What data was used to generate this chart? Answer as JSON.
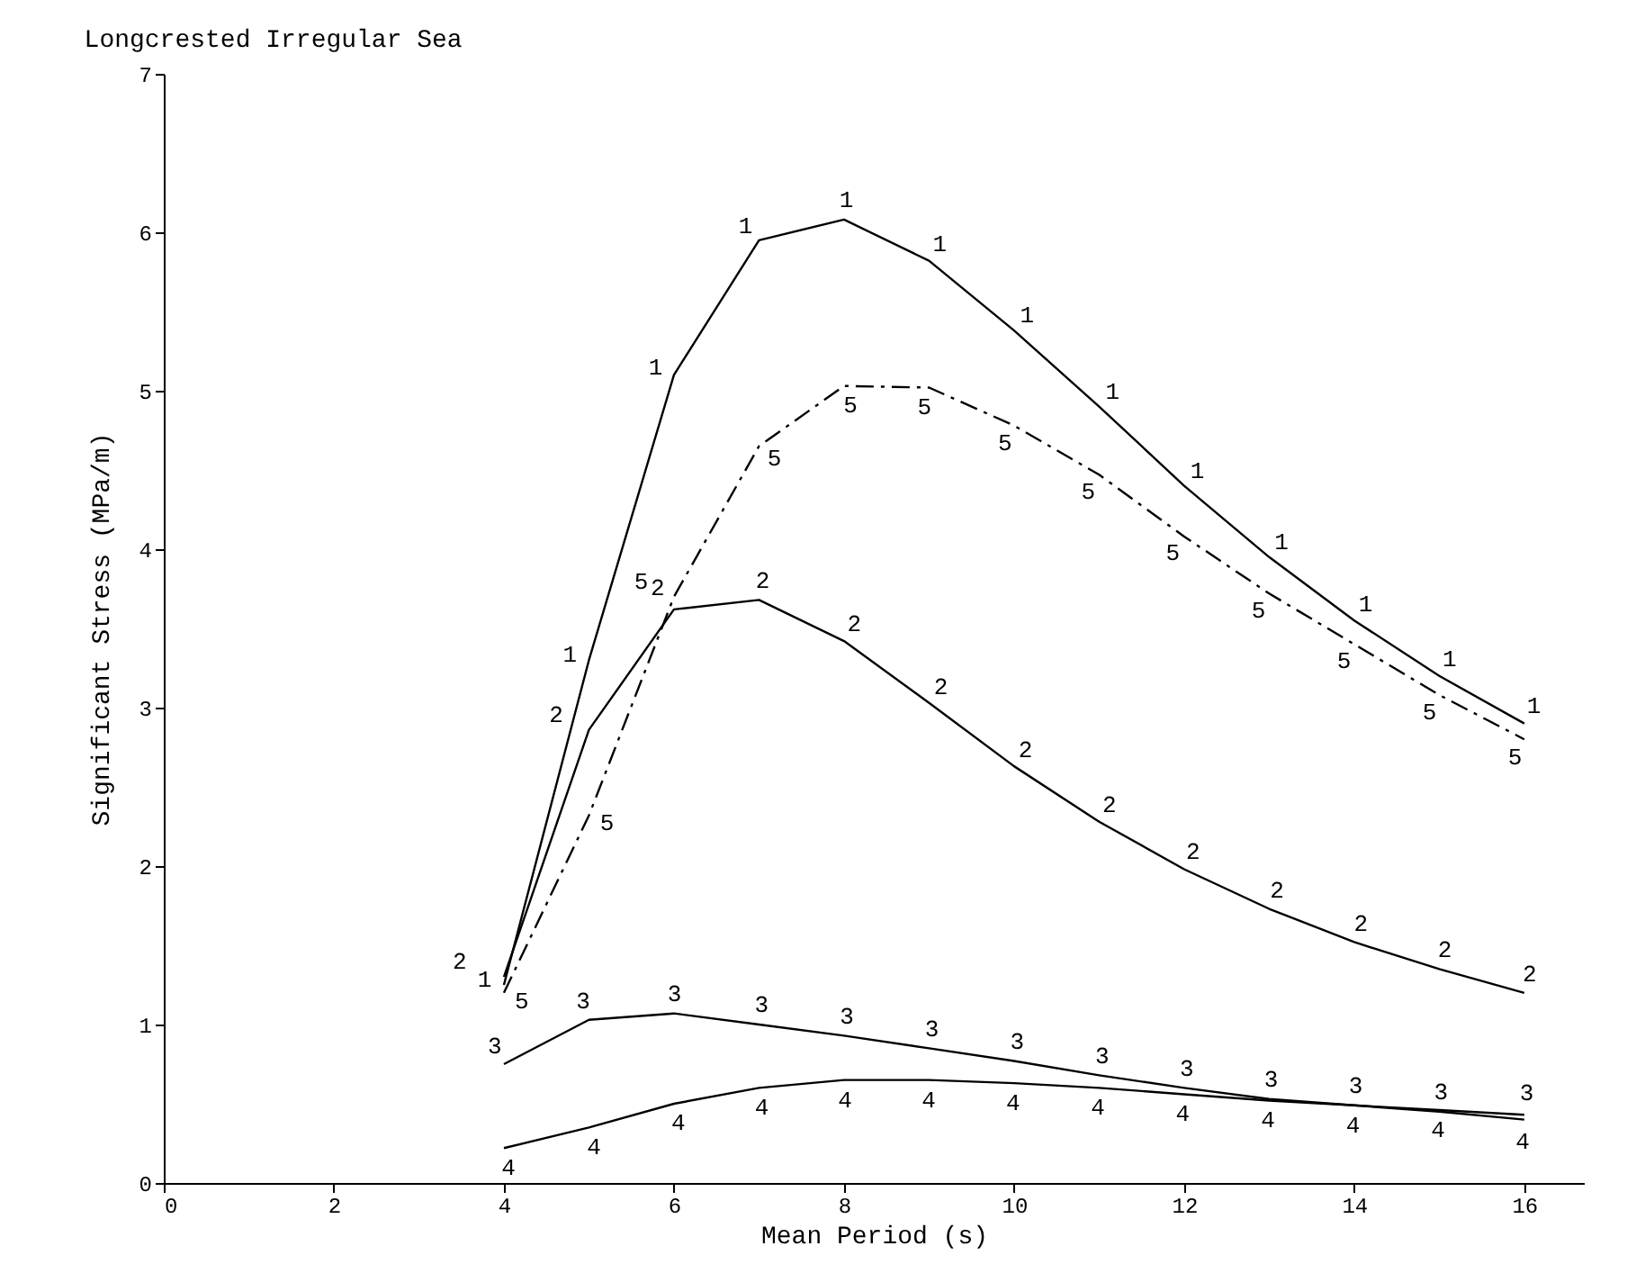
{
  "chart_data": {
    "type": "line",
    "title": "Longcrested Irregular Sea",
    "xlabel": "Mean Period (s)",
    "ylabel": "Significant Stress (MPa/m)",
    "x": [
      4,
      5,
      6,
      7,
      8,
      9,
      10,
      11,
      12,
      13,
      14,
      15,
      16
    ],
    "series": [
      {
        "name": "1",
        "color": "#000000",
        "line_style": "solid",
        "values": [
          1.25,
          3.3,
          5.1,
          5.95,
          6.08,
          5.82,
          5.38,
          4.9,
          4.4,
          3.95,
          3.55,
          3.2,
          2.9
        ]
      },
      {
        "name": "2",
        "color": "#000000",
        "line_style": "solid",
        "values": [
          1.3,
          2.86,
          3.62,
          3.68,
          3.42,
          3.03,
          2.63,
          2.28,
          1.98,
          1.73,
          1.52,
          1.35,
          1.2
        ]
      },
      {
        "name": "3",
        "color": "#000000",
        "line_style": "solid",
        "values": [
          0.75,
          1.03,
          1.07,
          1.0,
          0.93,
          0.85,
          0.77,
          0.68,
          0.6,
          0.53,
          0.49,
          0.45,
          0.4
        ]
      },
      {
        "name": "4",
        "color": "#000000",
        "line_style": "solid",
        "values": [
          0.22,
          0.35,
          0.5,
          0.6,
          0.65,
          0.65,
          0.63,
          0.6,
          0.56,
          0.52,
          0.49,
          0.46,
          0.43
        ]
      },
      {
        "name": "5",
        "color": "#000000",
        "line_style": "dashdot",
        "values": [
          1.2,
          2.32,
          3.7,
          4.65,
          5.03,
          5.02,
          4.78,
          4.47,
          4.08,
          3.72,
          3.4,
          3.08,
          2.8
        ]
      }
    ],
    "xlim": [
      0,
      16.7
    ],
    "xticks": [
      0,
      2,
      4,
      6,
      8,
      10,
      12,
      14,
      16
    ],
    "ylim": [
      0,
      7
    ],
    "yticks": [
      0,
      1,
      2,
      3,
      4,
      5,
      6,
      7
    ],
    "grid": false
  }
}
